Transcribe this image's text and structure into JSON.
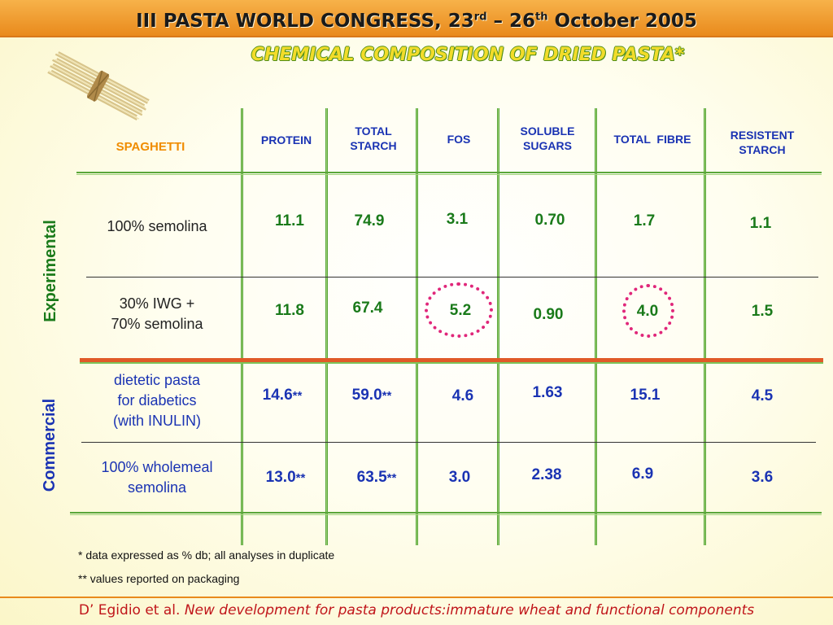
{
  "header": {
    "title_prefix": "III PASTA WORLD CONGRESS, 23",
    "title_sup1": "rd",
    "title_mid": " – 26",
    "title_sup2": "th",
    "title_suffix": " October 2005"
  },
  "subtitle": "CHEMICAL COMPOSITION OF DRIED PASTA*",
  "table": {
    "row_header": "SPAGHETTI",
    "columns": [
      {
        "key": "protein",
        "label_lines": [
          "PROTEIN"
        ]
      },
      {
        "key": "total_starch",
        "label_lines": [
          "TOTAL",
          "STARCH"
        ]
      },
      {
        "key": "fos",
        "label_lines": [
          "FOS"
        ]
      },
      {
        "key": "soluble_sugars",
        "label_lines": [
          "SOLUBLE",
          "SUGARS"
        ]
      },
      {
        "key": "total_fibre",
        "label_lines": [
          "TOTAL  FIBRE"
        ]
      },
      {
        "key": "resistent_starch",
        "label_lines": [
          "RESISTENT",
          "STARCH"
        ]
      }
    ],
    "groups": {
      "experimental": "Experimental",
      "commercial": "Commercial"
    },
    "rows": [
      {
        "group": "experimental",
        "label_lines": [
          "100% semolina"
        ],
        "values": [
          "11.1",
          "74.9",
          "3.1",
          "0.70",
          "1.7",
          "1.1"
        ],
        "stars": [
          "",
          "",
          "",
          "",
          "",
          ""
        ]
      },
      {
        "group": "experimental",
        "label_lines": [
          "30% IWG +",
          "70% semolina"
        ],
        "values": [
          "11.8",
          "67.4",
          "5.2",
          "0.90",
          "4.0",
          "1.5"
        ],
        "stars": [
          "",
          "",
          "",
          "",
          "",
          ""
        ]
      },
      {
        "group": "commercial",
        "label_lines": [
          "dietetic pasta",
          "for diabetics",
          "(with INULIN)"
        ],
        "values": [
          "14.6",
          "59.0",
          "4.6",
          "1.63",
          "15.1",
          "4.5"
        ],
        "stars": [
          "**",
          "**",
          "",
          "",
          "",
          ""
        ]
      },
      {
        "group": "commercial",
        "label_lines": [
          "100% wholemeal",
          "semolina"
        ],
        "values": [
          "13.0",
          "63.5",
          "3.0",
          "2.38",
          "6.9",
          "3.6"
        ],
        "stars": [
          "**",
          "**",
          "",
          "",
          "",
          ""
        ]
      }
    ],
    "highlighted_cells": [
      "row2-fos",
      "row2-total_fibre"
    ]
  },
  "notes": {
    "note1": "* data expressed as % db; all analyses in duplicate",
    "note2": "** values reported on packaging"
  },
  "footer": {
    "authors": "D’ Egidio et al. ",
    "title": "New development for pasta products:immature wheat and functional components"
  },
  "colors": {
    "header_bar": "#e98a1c",
    "subtitle_fill": "#f2dc2a",
    "experimental_green": "#1a7a1a",
    "commercial_blue": "#1a33b3",
    "highlight_circle": "#e0277a",
    "footer_red": "#c0151a"
  }
}
